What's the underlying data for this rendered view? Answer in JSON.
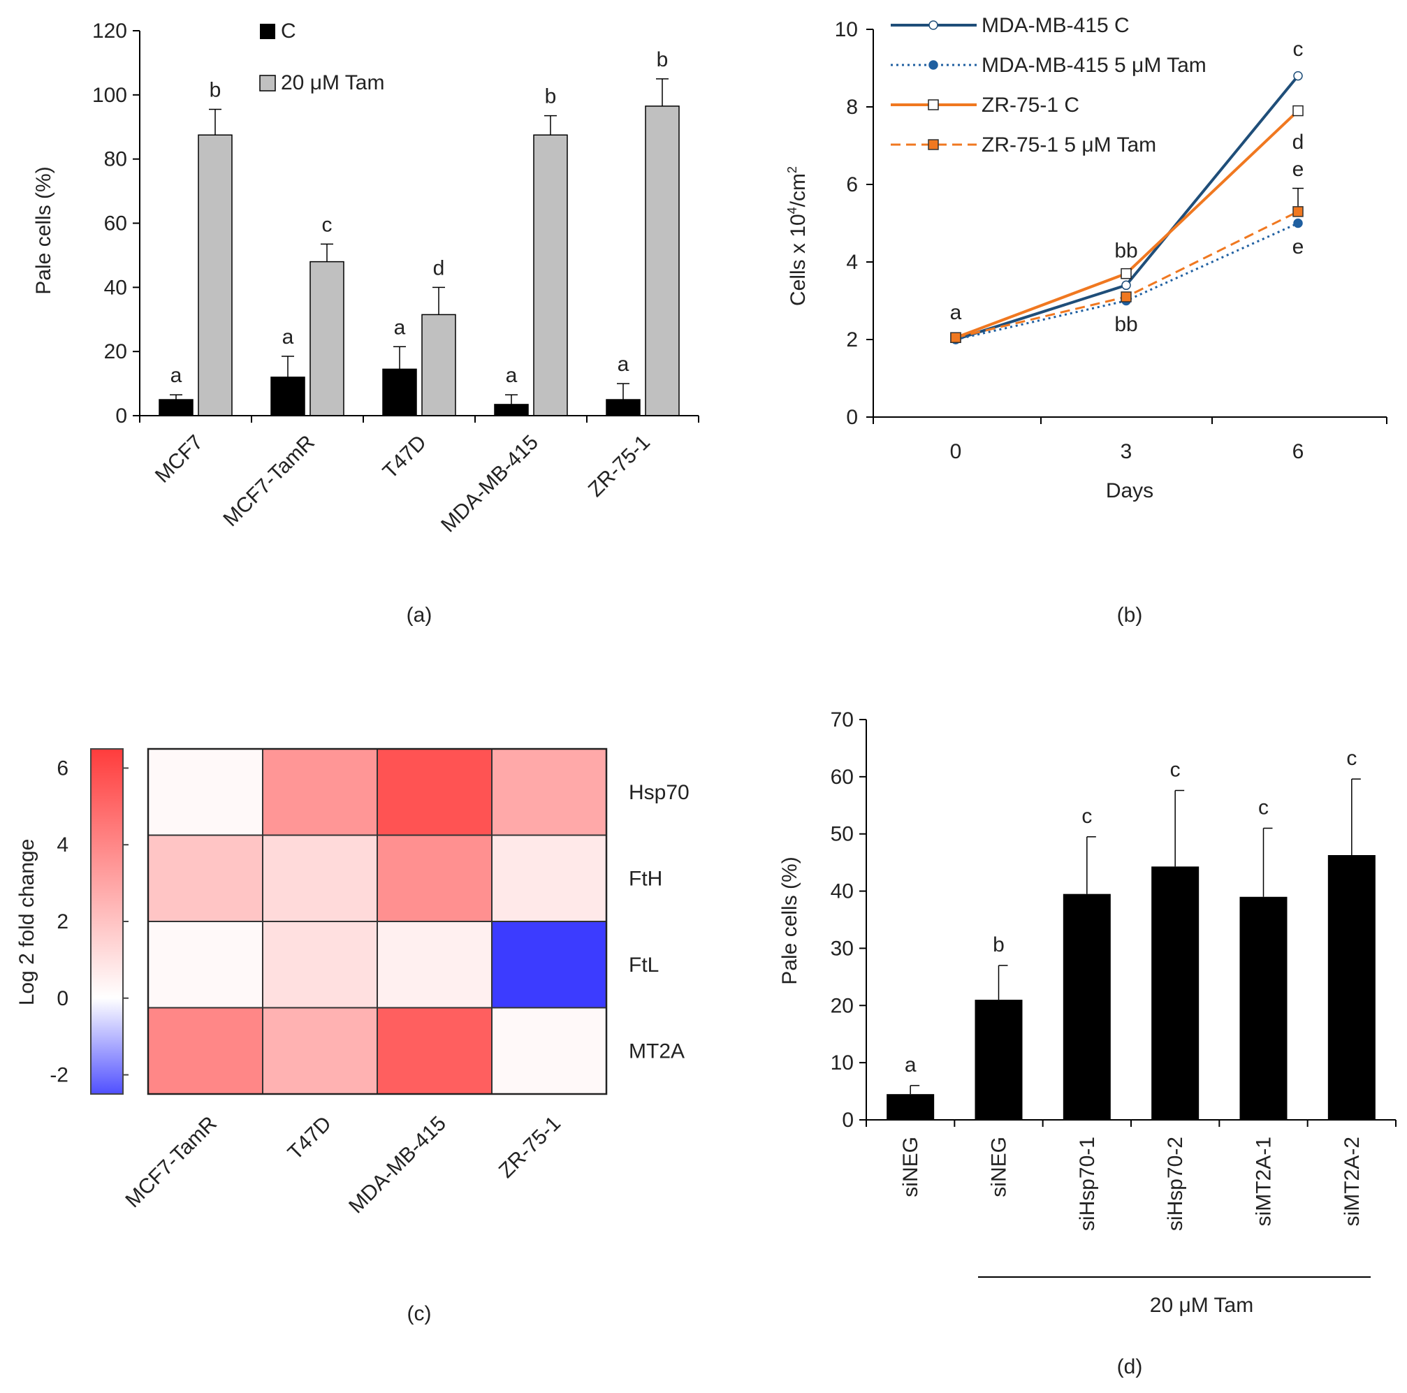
{
  "panels": {
    "a": {
      "chart_data": {
        "type": "bar",
        "ylabel": "Pale cells (%)",
        "ylim": [
          0,
          120
        ],
        "yticks": [
          0,
          20,
          40,
          60,
          80,
          100,
          120
        ],
        "categories": [
          "MCF7",
          "MCF7-TamR",
          "T47D",
          "MDA-MB-415",
          "ZR-75-1"
        ],
        "series": [
          {
            "name": "C",
            "color": "#000000",
            "values": [
              5,
              12,
              14.5,
              3.5,
              5
            ],
            "errors": [
              1.5,
              6.5,
              7,
              3,
              5
            ],
            "letters": [
              "a",
              "a",
              "a",
              "a",
              "a"
            ]
          },
          {
            "name": "20 μM Tam",
            "color": "#c0c0c0",
            "values": [
              87.5,
              48,
              31.5,
              87.5,
              96.5
            ],
            "errors": [
              8,
              5.5,
              8.5,
              6,
              8.5
            ],
            "letters": [
              "b",
              "c",
              "d",
              "b",
              "b"
            ]
          }
        ],
        "legend_position": "top-left"
      },
      "caption": "(a)"
    },
    "b": {
      "chart_data": {
        "type": "line",
        "xlabel": "Days",
        "ylabel_main": "Cells x 10",
        "ylabel_sup": "4",
        "ylabel_unit": "/cm",
        "ylabel_sup2": "2",
        "x": [
          0,
          3,
          6
        ],
        "xticks": [
          "0",
          "3",
          "6"
        ],
        "ylim": [
          0,
          10
        ],
        "yticks": [
          0,
          2,
          4,
          6,
          8,
          10
        ],
        "series": [
          {
            "name": "MDA-MB-415 C",
            "color": "#1f4e79",
            "style": "solid",
            "marker": "circle-open",
            "values": [
              2.0,
              3.4,
              8.8
            ]
          },
          {
            "name": "MDA-MB-415 5 μM Tam",
            "color": "#1f5fa0",
            "style": "dotted",
            "marker": "diamond-filled",
            "values": [
              2.0,
              3.0,
              5.0
            ]
          },
          {
            "name": "ZR-75-1 C",
            "color": "#f07820",
            "style": "solid",
            "marker": "square-open",
            "values": [
              2.05,
              3.7,
              7.9
            ]
          },
          {
            "name": "ZR-75-1 5 μM Tam",
            "color": "#f07820",
            "style": "dashed",
            "marker": "square-orange",
            "values": [
              2.05,
              3.1,
              5.3
            ],
            "errors": [
              0,
              0,
              0.6
            ]
          }
        ],
        "annotations": [
          {
            "text": "a",
            "x": 0,
            "y": 2.7
          },
          {
            "text": "bb",
            "x": 3,
            "y": 4.3
          },
          {
            "text": "bb",
            "x": 3,
            "y": 2.4
          },
          {
            "text": "c",
            "x": 6,
            "y": 9.5
          },
          {
            "text": "d",
            "x": 6,
            "y": 7.1
          },
          {
            "text": "e",
            "x": 6,
            "y": 6.4
          },
          {
            "text": "e",
            "x": 6,
            "y": 4.4
          }
        ],
        "legend_position": "top-left"
      },
      "caption": "(b)"
    },
    "c": {
      "chart_data": {
        "type": "heatmap",
        "columns": [
          "MCF7-TamR",
          "T47D",
          "MDA-MB-415",
          "ZR-75-1"
        ],
        "rows": [
          "Hsp70",
          "FtH",
          "FtL",
          "MT2A"
        ],
        "values": [
          [
            0.2,
            3.4,
            5.6,
            2.8
          ],
          [
            1.9,
            1.2,
            3.6,
            0.7
          ],
          [
            0.2,
            1.0,
            0.5,
            -3.3
          ],
          [
            3.9,
            2.5,
            5.2,
            0.2
          ]
        ],
        "colorbar_label": "Log 2 fold change",
        "colorbar_ticks": [
          "6",
          "4",
          "2",
          "0",
          "-2"
        ],
        "colorbar_range": [
          -2.5,
          6.5
        ]
      },
      "caption": "(c)"
    },
    "d": {
      "chart_data": {
        "type": "bar",
        "ylabel": "Pale cells (%)",
        "ylim": [
          0,
          70
        ],
        "yticks": [
          0,
          10,
          20,
          30,
          40,
          50,
          60,
          70
        ],
        "categories": [
          "siNEG",
          "siNEG",
          "siHsp70-1",
          "siHsp70-2",
          "siMT2A-1",
          "siMT2A-2"
        ],
        "values": [
          4.5,
          21,
          39.5,
          44.3,
          39,
          46.3
        ],
        "errors": [
          1.5,
          6,
          10,
          13.3,
          12,
          13.3
        ],
        "letters": [
          "a",
          "b",
          "c",
          "c",
          "c",
          "c"
        ],
        "color": "#000000",
        "group_label": "20 μM Tam"
      },
      "caption": "(d)"
    }
  }
}
